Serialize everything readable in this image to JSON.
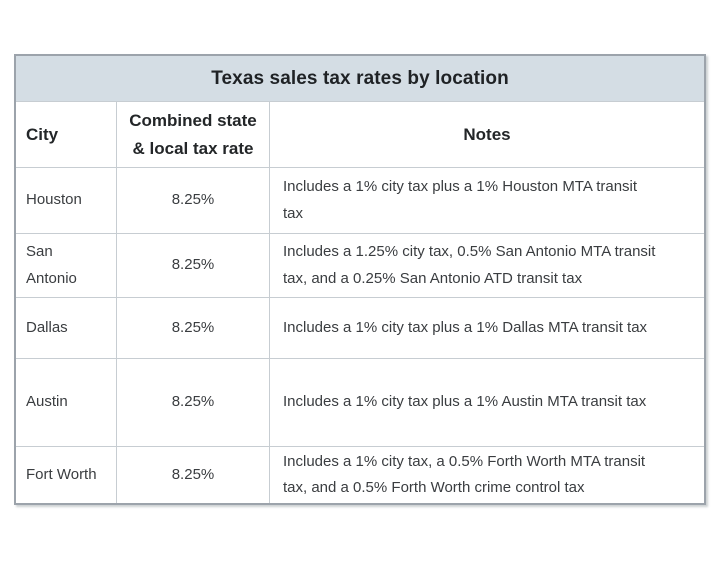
{
  "title": "Texas sales tax rates by location",
  "table": {
    "headers": {
      "city": "City",
      "rate": "Combined state\n& local tax rate",
      "notes": "Notes"
    },
    "rows": [
      {
        "city": "Houston",
        "rate": "8.25%",
        "note": "Includes a 1% city tax plus a 1% Houston MTA transit\ntax"
      },
      {
        "city": "San Antonio",
        "rate": "8.25%",
        "note": "Includes a 1.25% city tax, 0.5% San Antonio MTA transit\ntax, and a 0.25% San Antonio ATD transit tax"
      },
      {
        "city": "Dallas",
        "rate": "8.25%",
        "note": "Includes a 1% city tax plus a 1% Dallas MTA transit tax"
      },
      {
        "city": "Austin",
        "rate": "8.25%",
        "note": "Includes a 1% city tax plus a 1% Austin MTA transit tax"
      },
      {
        "city": "Fort Worth",
        "rate": "8.25%",
        "note": "Includes a 1% city tax, a 0.5% Forth Worth MTA transit\ntax, and a 0.5% Forth Worth crime control tax"
      }
    ]
  },
  "colors": {
    "title_background": "#d4dde4",
    "border": "#c7cdd2",
    "outer_border": "#9ca3ab",
    "heading_text": "#232628",
    "body_text": "#3a3d40"
  },
  "chart_data": {
    "type": "table",
    "title": "Texas sales tax rates by location",
    "columns": [
      "City",
      "Combined state & local tax rate",
      "Notes"
    ],
    "rows": [
      [
        "Houston",
        "8.25%",
        "Includes a 1% city tax plus a 1% Houston MTA transit tax"
      ],
      [
        "San Antonio",
        "8.25%",
        "Includes a 1.25% city tax, 0.5% San Antonio MTA transit tax, and a 0.25% San Antonio ATD transit tax"
      ],
      [
        "Dallas",
        "8.25%",
        "Includes a 1% city tax plus a 1% Dallas MTA transit tax"
      ],
      [
        "Austin",
        "8.25%",
        "Includes a 1% city tax plus a 1% Austin MTA transit tax"
      ],
      [
        "Fort Worth",
        "8.25%",
        "Includes a 1% city tax, a 0.5% Forth Worth MTA transit tax, and a 0.5% Forth Worth crime control tax"
      ]
    ]
  }
}
